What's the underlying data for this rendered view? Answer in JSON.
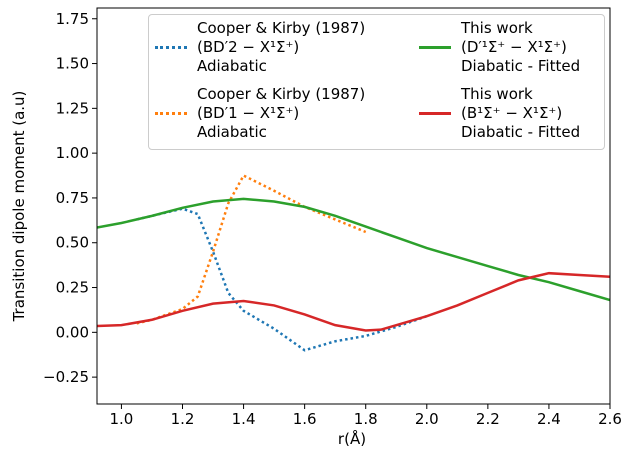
{
  "chart_data": {
    "type": "line",
    "xlabel": "r(Å)",
    "ylabel": "Transition dipole moment (a.u)",
    "xlim": [
      0.92,
      2.6
    ],
    "ylim": [
      -0.4,
      1.81
    ],
    "xticks": [
      {
        "value": 1.0,
        "label": "1.0"
      },
      1.2,
      1.4,
      1.6,
      1.8,
      {
        "value": 2.0,
        "label": "2.0"
      },
      2.2,
      2.4,
      2.6
    ],
    "yticks": [
      {
        "value": -0.25,
        "label": "−0.25"
      },
      {
        "value": 0,
        "label": "0.00"
      },
      0.25,
      {
        "value": 0.5,
        "label": "0.50"
      },
      0.75,
      {
        "value": 1,
        "label": "1.00"
      },
      1.25,
      {
        "value": 1.5,
        "label": "1.50"
      },
      1.75
    ],
    "series": [
      {
        "name": "Cooper & Kirby (1987)\n(BD′2 − X¹Σ⁺)\nAdiabatic",
        "color": "#1f77b4",
        "dotted": true,
        "x": [
          1.05,
          1.1,
          1.2,
          1.25,
          1.3,
          1.35,
          1.4,
          1.5,
          1.6,
          1.7,
          1.8,
          1.9,
          2.0
        ],
        "values": [
          0.63,
          0.65,
          0.69,
          0.66,
          0.45,
          0.22,
          0.12,
          0.02,
          -0.1,
          -0.05,
          -0.02,
          0.03,
          0.09
        ]
      },
      {
        "name": "Cooper & Kirby (1987)\n(BD′1 − X¹Σ⁺)\nAdiabatic",
        "color": "#ff7f0e",
        "dotted": true,
        "x": [
          1.05,
          1.1,
          1.2,
          1.25,
          1.3,
          1.35,
          1.4,
          1.5,
          1.6,
          1.7,
          1.8
        ],
        "values": [
          0.05,
          0.07,
          0.13,
          0.2,
          0.45,
          0.72,
          0.875,
          0.79,
          0.7,
          0.63,
          0.56
        ]
      },
      {
        "name": "This work\n(D′¹Σ⁺ − X¹Σ⁺)\nDiabatic - Fitted",
        "color": "#2ca02c",
        "dotted": false,
        "x": [
          0.92,
          1.0,
          1.1,
          1.2,
          1.3,
          1.4,
          1.5,
          1.6,
          1.7,
          1.8,
          1.9,
          2.0,
          2.1,
          2.2,
          2.3,
          2.4,
          2.5,
          2.6
        ],
        "values": [
          0.585,
          0.61,
          0.65,
          0.695,
          0.73,
          0.745,
          0.73,
          0.7,
          0.65,
          0.59,
          0.53,
          0.47,
          0.42,
          0.37,
          0.32,
          0.28,
          0.23,
          0.18
        ]
      },
      {
        "name": "This work\n(B¹Σ⁺ − X¹Σ⁺)\nDiabatic - Fitted",
        "color": "#d62728",
        "dotted": false,
        "x": [
          0.92,
          1.0,
          1.1,
          1.2,
          1.3,
          1.4,
          1.5,
          1.6,
          1.7,
          1.8,
          1.85,
          1.9,
          2.0,
          2.1,
          2.2,
          2.3,
          2.4,
          2.5,
          2.6
        ],
        "values": [
          0.035,
          0.04,
          0.07,
          0.12,
          0.16,
          0.175,
          0.15,
          0.1,
          0.04,
          0.01,
          0.015,
          0.04,
          0.09,
          0.15,
          0.22,
          0.29,
          0.33,
          0.32,
          0.31
        ]
      }
    ]
  }
}
